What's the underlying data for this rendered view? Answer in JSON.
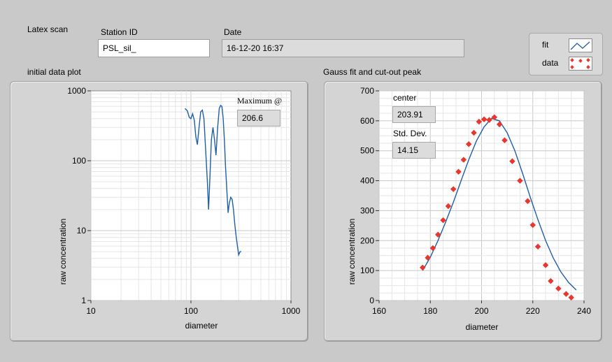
{
  "panel": {
    "title": "Latex scan",
    "station_id_label": "Station ID",
    "station_id_value": "PSL_sil_",
    "date_label": "Date",
    "date_value": "16-12-20 16:37"
  },
  "legend": {
    "items": [
      {
        "label": "fit",
        "style": "line",
        "color": "#1f5fa8"
      },
      {
        "label": "data",
        "style": "points",
        "color": "#e8372f"
      }
    ]
  },
  "left_chart": {
    "caption": "initial data plot",
    "maximum_label": "Maximum @",
    "maximum_value": "206.6"
  },
  "right_chart": {
    "caption": "Gauss fit and cut-out peak",
    "center_label": "center",
    "center_value": "203.91",
    "stddev_label": "Std. Dev.",
    "stddev_value": "14.15"
  },
  "colors": {
    "background": "#c9c9c9",
    "plot_area": "#ffffff",
    "fit_line": "#1f5fa8",
    "data_points": "#e8372f"
  },
  "chart_data": [
    {
      "type": "line",
      "xlabel": "diameter",
      "ylabel": "raw concentration",
      "x_scale": "log",
      "y_scale": "log",
      "xlim": [
        10,
        1000
      ],
      "ylim": [
        1,
        1000
      ],
      "x_ticks": [
        "10",
        "100",
        "1000"
      ],
      "y_ticks": [
        "1",
        "10",
        "100",
        "1000"
      ],
      "grid": true,
      "series": [
        {
          "x": [
            87,
            92,
            96,
            100,
            104,
            108,
            112,
            116,
            120,
            125,
            130,
            135,
            140,
            146,
            150,
            155,
            160,
            166,
            172,
            178,
            185,
            192,
            198,
            204,
            210,
            216,
            222,
            228,
            235,
            242,
            250,
            258,
            266,
            275,
            284,
            292,
            300,
            310,
            318
          ],
          "y": [
            560,
            520,
            420,
            400,
            470,
            380,
            220,
            170,
            280,
            500,
            530,
            400,
            150,
            50,
            20,
            60,
            200,
            300,
            200,
            120,
            300,
            560,
            620,
            600,
            400,
            200,
            80,
            40,
            18,
            25,
            30,
            28,
            20,
            12,
            8,
            6,
            4.5,
            5,
            5
          ]
        }
      ]
    },
    {
      "type": "scatter",
      "xlabel": "diameter",
      "ylabel": "raw concentration",
      "xlim": [
        160,
        240
      ],
      "ylim": [
        0,
        700
      ],
      "x_ticks": [
        "160",
        "180",
        "200",
        "220",
        "240"
      ],
      "y_ticks": [
        "0",
        "100",
        "200",
        "300",
        "400",
        "500",
        "600",
        "700"
      ],
      "grid": true,
      "series": [
        {
          "name": "fit",
          "type": "line",
          "x": [
            177,
            180,
            183,
            186,
            189,
            192,
            195,
            198,
            201,
            203.91,
            207,
            210,
            213,
            216,
            219,
            222,
            225,
            228,
            231,
            234,
            237
          ],
          "y": [
            100,
            145,
            200,
            262,
            328,
            400,
            470,
            533,
            580,
            608,
            600,
            560,
            500,
            425,
            345,
            270,
            200,
            142,
            95,
            60,
            35
          ]
        },
        {
          "name": "data",
          "type": "scatter",
          "x": [
            177,
            179,
            181,
            183,
            185,
            187,
            189,
            191,
            193,
            195,
            197,
            199,
            201,
            203,
            205,
            207,
            209,
            212,
            215,
            218,
            220,
            222,
            225,
            227,
            230,
            233,
            235
          ],
          "y": [
            110,
            143,
            175,
            220,
            268,
            315,
            372,
            430,
            470,
            522,
            560,
            597,
            605,
            603,
            612,
            588,
            535,
            465,
            400,
            332,
            252,
            180,
            118,
            65,
            40,
            22,
            10
          ]
        }
      ]
    }
  ]
}
